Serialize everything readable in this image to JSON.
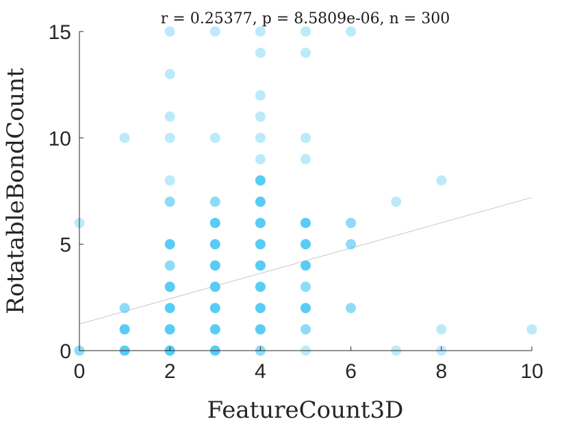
{
  "chart_data": {
    "type": "scatter",
    "title": "r = 0.25377, p = 8.5809e-06, n = 300",
    "xlabel": "FeatureCount3D",
    "ylabel": "RotatableBondCount",
    "xlim": [
      0,
      10
    ],
    "ylim": [
      0,
      15
    ],
    "xticks": [
      "0",
      "2",
      "4",
      "6",
      "8",
      "10"
    ],
    "yticks": [
      "0",
      "5",
      "10",
      "15"
    ],
    "grid": false,
    "marker_color": "#4ec9f5",
    "fit_line_color": "#c8c8c8",
    "fit_line": {
      "x": [
        0,
        10
      ],
      "y": [
        1.25,
        7.2
      ]
    },
    "points": [
      {
        "x": 0,
        "y": 0,
        "density": "medium"
      },
      {
        "x": 0,
        "y": 6,
        "density": "low"
      },
      {
        "x": 1,
        "y": 0,
        "density": "high"
      },
      {
        "x": 1,
        "y": 1,
        "density": "high"
      },
      {
        "x": 1,
        "y": 2,
        "density": "medium"
      },
      {
        "x": 1,
        "y": 10,
        "density": "low"
      },
      {
        "x": 2,
        "y": 0,
        "density": "high"
      },
      {
        "x": 2,
        "y": 1,
        "density": "high"
      },
      {
        "x": 2,
        "y": 2,
        "density": "high"
      },
      {
        "x": 2,
        "y": 3,
        "density": "high"
      },
      {
        "x": 2,
        "y": 4,
        "density": "medium"
      },
      {
        "x": 2,
        "y": 5,
        "density": "high"
      },
      {
        "x": 2,
        "y": 7,
        "density": "medium"
      },
      {
        "x": 2,
        "y": 8,
        "density": "low"
      },
      {
        "x": 2,
        "y": 10,
        "density": "low"
      },
      {
        "x": 2,
        "y": 11,
        "density": "low"
      },
      {
        "x": 2,
        "y": 13,
        "density": "low"
      },
      {
        "x": 2,
        "y": 15,
        "density": "low"
      },
      {
        "x": 3,
        "y": 0,
        "density": "high"
      },
      {
        "x": 3,
        "y": 1,
        "density": "high"
      },
      {
        "x": 3,
        "y": 2,
        "density": "high"
      },
      {
        "x": 3,
        "y": 3,
        "density": "high"
      },
      {
        "x": 3,
        "y": 4,
        "density": "high"
      },
      {
        "x": 3,
        "y": 5,
        "density": "high"
      },
      {
        "x": 3,
        "y": 6,
        "density": "high"
      },
      {
        "x": 3,
        "y": 7,
        "density": "medium"
      },
      {
        "x": 3,
        "y": 10,
        "density": "low"
      },
      {
        "x": 3,
        "y": 15,
        "density": "low"
      },
      {
        "x": 4,
        "y": 0,
        "density": "medium"
      },
      {
        "x": 4,
        "y": 1,
        "density": "high"
      },
      {
        "x": 4,
        "y": 2,
        "density": "high"
      },
      {
        "x": 4,
        "y": 3,
        "density": "high"
      },
      {
        "x": 4,
        "y": 4,
        "density": "high"
      },
      {
        "x": 4,
        "y": 5,
        "density": "high"
      },
      {
        "x": 4,
        "y": 6,
        "density": "high"
      },
      {
        "x": 4,
        "y": 7,
        "density": "high"
      },
      {
        "x": 4,
        "y": 8,
        "density": "high"
      },
      {
        "x": 4,
        "y": 9,
        "density": "low"
      },
      {
        "x": 4,
        "y": 10,
        "density": "low"
      },
      {
        "x": 4,
        "y": 11,
        "density": "low"
      },
      {
        "x": 4,
        "y": 12,
        "density": "low"
      },
      {
        "x": 4,
        "y": 14,
        "density": "low"
      },
      {
        "x": 4,
        "y": 15,
        "density": "low"
      },
      {
        "x": 5,
        "y": 0,
        "density": "low"
      },
      {
        "x": 5,
        "y": 1,
        "density": "medium"
      },
      {
        "x": 5,
        "y": 2,
        "density": "high"
      },
      {
        "x": 5,
        "y": 3,
        "density": "medium"
      },
      {
        "x": 5,
        "y": 4,
        "density": "high"
      },
      {
        "x": 5,
        "y": 5,
        "density": "high"
      },
      {
        "x": 5,
        "y": 6,
        "density": "high"
      },
      {
        "x": 5,
        "y": 9,
        "density": "low"
      },
      {
        "x": 5,
        "y": 10,
        "density": "low"
      },
      {
        "x": 5,
        "y": 14,
        "density": "low"
      },
      {
        "x": 5,
        "y": 15,
        "density": "low"
      },
      {
        "x": 6,
        "y": 2,
        "density": "medium"
      },
      {
        "x": 6,
        "y": 5,
        "density": "medium"
      },
      {
        "x": 6,
        "y": 6,
        "density": "medium"
      },
      {
        "x": 6,
        "y": 15,
        "density": "low"
      },
      {
        "x": 7,
        "y": 0,
        "density": "low"
      },
      {
        "x": 7,
        "y": 7,
        "density": "low"
      },
      {
        "x": 8,
        "y": 0,
        "density": "low"
      },
      {
        "x": 8,
        "y": 1,
        "density": "low"
      },
      {
        "x": 8,
        "y": 8,
        "density": "low"
      },
      {
        "x": 10,
        "y": 1,
        "density": "low"
      }
    ]
  }
}
